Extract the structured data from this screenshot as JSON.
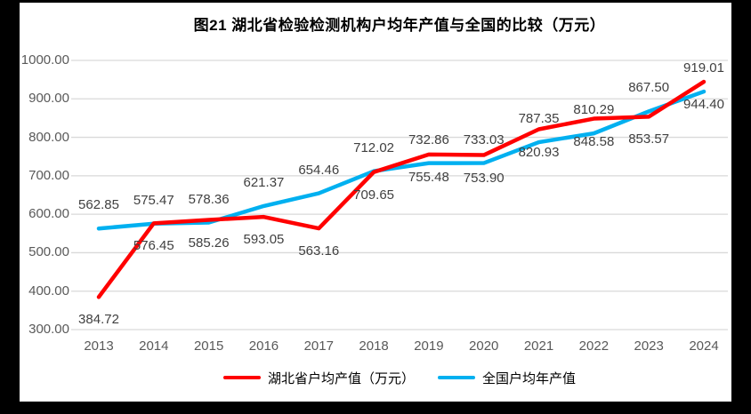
{
  "chart_data": {
    "type": "line",
    "title": "图21  湖北省检验检测机构户均年产值与全国的比较（万元）",
    "categories": [
      "2013",
      "2014",
      "2015",
      "2016",
      "2017",
      "2018",
      "2019",
      "2020",
      "2021",
      "2022",
      "2023",
      "2024"
    ],
    "series": [
      {
        "name": "湖北省户均产值（万元）",
        "color": "#FF0000",
        "label_position": "below",
        "values": [
          384.72,
          576.45,
          585.26,
          593.05,
          563.16,
          709.65,
          755.48,
          753.9,
          820.93,
          848.58,
          853.57,
          944.4
        ]
      },
      {
        "name": "全国户均年产值",
        "color": "#00B0F0",
        "label_position": "above",
        "values": [
          562.85,
          575.47,
          578.36,
          621.37,
          654.46,
          712.02,
          732.86,
          733.03,
          787.35,
          810.29,
          867.5,
          919.01
        ]
      }
    ],
    "ylim": [
      300,
      1000
    ],
    "y_tick_labels": [
      "1000.00",
      "900.00",
      "800.00",
      "700.00",
      "600.00",
      "500.00",
      "400.00",
      "300.00"
    ],
    "y_tick_values": [
      1000,
      900,
      800,
      700,
      600,
      500,
      400,
      300
    ],
    "grid": "horizontal",
    "legend_position": "bottom",
    "colors": {
      "gridline": "#D9D9D9",
      "axis_label": "#595959",
      "data_label": "#404040",
      "legend_text": "#000000",
      "title": "#000000",
      "frame": "#000000",
      "background": "#FFFFFF"
    }
  }
}
